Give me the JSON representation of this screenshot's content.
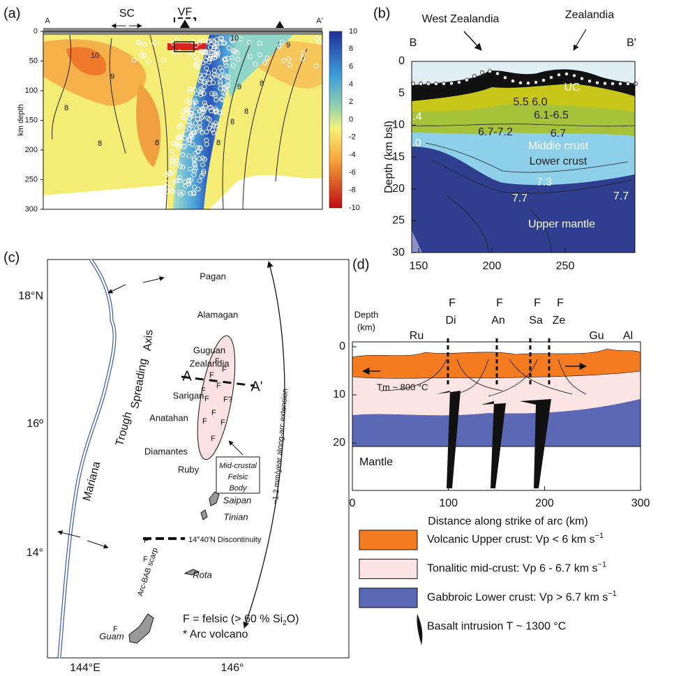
{
  "panel_a": {
    "label": "(a)",
    "section_start": "A",
    "section_end": "A'",
    "sc": "SC",
    "vf": "VF",
    "y_axis_label": "km depth",
    "yticks": [
      "0",
      "50",
      "100",
      "150",
      "200",
      "250",
      "300"
    ],
    "colorbar_ticks": [
      "10",
      "8",
      "6",
      "4",
      "2",
      "0",
      "-2",
      "-4",
      "-6",
      "-8",
      "-10"
    ],
    "contour_labels": [
      "10",
      "9",
      "10",
      "8",
      "9",
      "9",
      "8",
      "8",
      "8",
      "8",
      "8",
      "8"
    ]
  },
  "panel_b": {
    "label": "(b)",
    "section_start": "B",
    "section_end": "B'",
    "west": "West Zealandia",
    "east": "Zealandia",
    "y_axis_label": "Depth (km bsl)",
    "yticks": [
      "0",
      "5",
      "10",
      "15",
      "20",
      "25",
      "30"
    ],
    "xticks": [
      "150",
      "200",
      "250"
    ],
    "layers": [
      "UC",
      "Middle crust",
      "Lower crust",
      "Upper mantle"
    ],
    "velocity_labels": [
      "5.5 6.0",
      "6.1-6.5",
      "6.7-7.2",
      "6.7",
      "7.3",
      "7.7",
      "7.7",
      ".4",
      ".0"
    ]
  },
  "panel_c": {
    "label": "(c)",
    "lat_ticks": [
      "18°N",
      "16º",
      "14°"
    ],
    "lon_ticks": [
      "144°E",
      "146°"
    ],
    "axis_words": [
      "Mariana",
      "Trough",
      "Spreading",
      "Axis"
    ],
    "islands": [
      "Pagan",
      "Alamagan",
      "Guguan",
      "Zealandia",
      "Sarigan",
      "Anatahan",
      "Diamantes",
      "Ruby"
    ],
    "islands_italic": [
      "Saipan",
      "Tinian",
      "Rota",
      "Guam"
    ],
    "section_start": "A",
    "section_end": "A'",
    "extension": "~1.2 mm/year along-arc extension",
    "felsic_body": [
      "Mid-crustal",
      "Felsic",
      "Body"
    ],
    "discontinuity": "14°40'N Discontinuity",
    "scarp": "Arc-BAB scarp",
    "felsic_marks": [
      "F",
      "F",
      "F",
      "F",
      "F",
      "F?",
      "F",
      "F",
      "F",
      "F",
      "F",
      "F",
      "F",
      "F"
    ],
    "felsic_legend": [
      "F = felsic (> 60 % Si",
      "2",
      "O)"
    ],
    "volcano_legend": "* Arc volcano"
  },
  "panel_d": {
    "label": "(d)",
    "depth_label": [
      "Depth",
      "(km)"
    ],
    "yticks": [
      "0",
      "10",
      "20"
    ],
    "xticks": [
      "0",
      "100",
      "200",
      "300"
    ],
    "x_axis_label": "Distance along strike of arc (km)",
    "volcanoes": [
      "Di",
      "An",
      "Sa",
      "Ze"
    ],
    "felsic_marks": [
      "F",
      "F",
      "F",
      "F"
    ],
    "end_labels": [
      "Ru",
      "Gu",
      "Al"
    ],
    "temperature": "Tm ~ 800 °C",
    "mantle": "Mantle",
    "legend": [
      {
        "label": "Volcanic Upper crust: Vp < 6 km s",
        "sup": "−1",
        "color": "#f47b20"
      },
      {
        "label": "Tonalitic mid-crust: Vp 6 - 6.7 km s",
        "sup": "−1",
        "color": "#fde4e4"
      },
      {
        "label": "Gabbroic Lower crust: Vp > 6.7 km s",
        "sup": "−1",
        "color": "#5a68b5"
      },
      {
        "label": "Basalt intrusion T ~ 1300 °C"
      }
    ]
  }
}
